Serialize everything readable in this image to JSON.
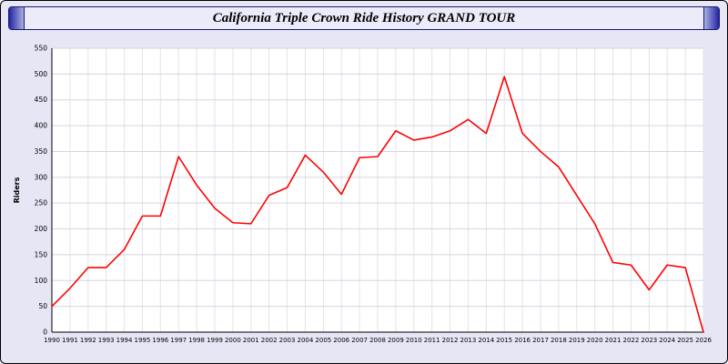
{
  "window": {
    "title": "California Triple Crown Ride History GRAND TOUR"
  },
  "chart_data": {
    "type": "line",
    "title": "California Triple Crown Ride History GRAND TOUR",
    "xlabel": "",
    "ylabel": "Riders",
    "ylim": [
      0,
      550
    ],
    "ytick_step": 50,
    "grid": true,
    "legend": "none",
    "line_color": "#ff0000",
    "plot_bg": "#ffffff",
    "x": [
      1990,
      1991,
      1992,
      1993,
      1994,
      1995,
      1996,
      1997,
      1998,
      1999,
      2000,
      2001,
      2002,
      2003,
      2004,
      2005,
      2006,
      2007,
      2008,
      2009,
      2010,
      2011,
      2012,
      2013,
      2014,
      2015,
      2016,
      2017,
      2018,
      2019,
      2020,
      2021,
      2022,
      2023,
      2024,
      2025,
      2026
    ],
    "values": [
      50,
      85,
      125,
      125,
      160,
      225,
      225,
      340,
      285,
      240,
      212,
      210,
      265,
      280,
      343,
      310,
      267,
      338,
      340,
      390,
      372,
      378,
      390,
      412,
      385,
      495,
      385,
      350,
      320,
      265,
      210,
      135,
      130,
      82,
      130,
      125,
      0
    ]
  }
}
